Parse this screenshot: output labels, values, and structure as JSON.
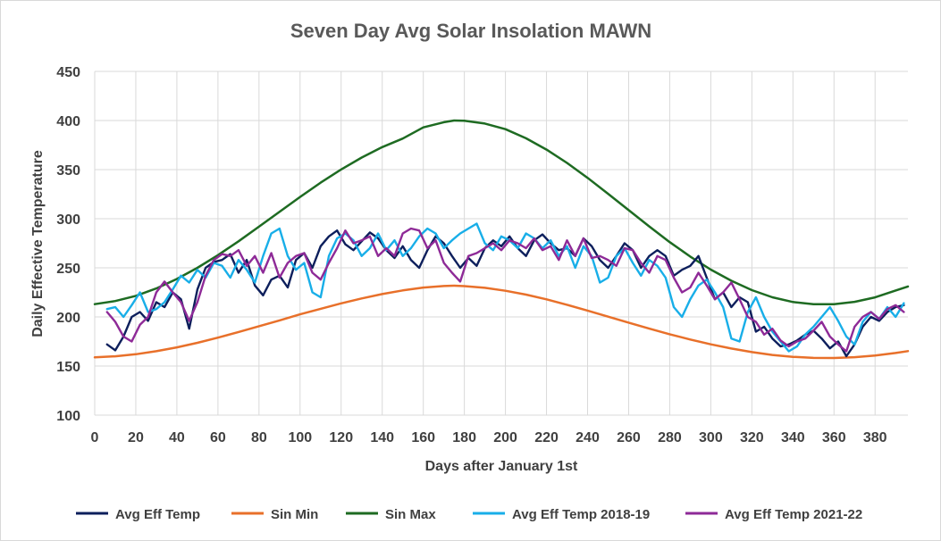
{
  "chart_data": {
    "type": "line",
    "title": "Seven Day Avg Solar Insolation MAWN",
    "xlabel": "Days after January 1st",
    "ylabel": "Daily Effective Temperature",
    "xlim": [
      0,
      396
    ],
    "ylim": [
      100,
      450
    ],
    "xticks": [
      0,
      20,
      40,
      60,
      80,
      100,
      120,
      140,
      160,
      180,
      200,
      220,
      240,
      260,
      280,
      300,
      320,
      340,
      360,
      380
    ],
    "yticks": [
      100,
      150,
      200,
      250,
      300,
      350,
      400,
      450
    ],
    "grid": true,
    "legend_position": "bottom",
    "series": [
      {
        "name": "Avg Eff Temp",
        "color": "#0d1f5c",
        "x": [
          6,
          10,
          14,
          18,
          22,
          26,
          30,
          34,
          38,
          42,
          46,
          50,
          54,
          58,
          62,
          66,
          70,
          74,
          78,
          82,
          86,
          90,
          94,
          98,
          102,
          106,
          110,
          114,
          118,
          122,
          126,
          130,
          134,
          138,
          142,
          146,
          150,
          154,
          158,
          162,
          166,
          170,
          174,
          178,
          182,
          186,
          190,
          194,
          198,
          202,
          206,
          210,
          214,
          218,
          222,
          226,
          230,
          234,
          238,
          242,
          246,
          250,
          254,
          258,
          262,
          266,
          270,
          274,
          278,
          282,
          286,
          290,
          294,
          298,
          302,
          306,
          310,
          314,
          318,
          322,
          326,
          330,
          334,
          338,
          342,
          346,
          350,
          354,
          358,
          362,
          366,
          370,
          374,
          378,
          382,
          386,
          390,
          394
        ],
        "values": [
          172,
          166,
          180,
          200,
          205,
          196,
          215,
          210,
          225,
          218,
          188,
          228,
          250,
          256,
          258,
          264,
          245,
          258,
          232,
          222,
          238,
          242,
          230,
          258,
          265,
          250,
          272,
          282,
          288,
          274,
          268,
          277,
          286,
          280,
          268,
          260,
          272,
          258,
          250,
          268,
          282,
          275,
          262,
          250,
          260,
          252,
          270,
          278,
          272,
          282,
          270,
          262,
          278,
          284,
          275,
          268,
          270,
          262,
          280,
          272,
          258,
          250,
          262,
          275,
          268,
          250,
          262,
          268,
          262,
          242,
          248,
          252,
          262,
          240,
          218,
          225,
          210,
          220,
          215,
          185,
          190,
          178,
          170,
          172,
          176,
          182,
          186,
          178,
          168,
          175,
          160,
          172,
          190,
          200,
          196,
          205,
          210,
          212
        ]
      },
      {
        "name": "Sin Min",
        "color": "#e8702a",
        "x": [
          0,
          10,
          20,
          30,
          40,
          50,
          60,
          70,
          80,
          90,
          100,
          110,
          120,
          130,
          140,
          150,
          160,
          170,
          175,
          180,
          190,
          200,
          210,
          220,
          230,
          240,
          250,
          260,
          270,
          280,
          290,
          300,
          310,
          320,
          330,
          340,
          350,
          360,
          370,
          380,
          390,
          396
        ],
        "values": [
          158.8,
          159.9,
          162.0,
          165.1,
          169.0,
          173.6,
          178.9,
          184.6,
          190.5,
          196.5,
          202.6,
          208.3,
          213.8,
          218.8,
          223.3,
          227.0,
          229.9,
          231.5,
          231.8,
          231.4,
          229.6,
          226.6,
          222.7,
          217.9,
          212.4,
          206.5,
          200.3,
          194.2,
          188.1,
          182.4,
          177.0,
          172.1,
          167.8,
          164.2,
          161.3,
          159.4,
          158.3,
          158.2,
          159.0,
          160.7,
          163.3,
          165.2
        ]
      },
      {
        "name": "Sin Max",
        "color": "#1e6b22",
        "x": [
          0,
          10,
          20,
          30,
          40,
          50,
          60,
          70,
          80,
          90,
          100,
          110,
          120,
          130,
          140,
          150,
          160,
          170,
          175,
          180,
          190,
          200,
          210,
          220,
          230,
          240,
          250,
          260,
          270,
          280,
          290,
          300,
          310,
          320,
          330,
          340,
          350,
          360,
          370,
          380,
          390,
          396
        ],
        "values": [
          213.0,
          216.2,
          221.5,
          229.0,
          238.6,
          250.0,
          262.9,
          277.0,
          291.9,
          307.1,
          322.2,
          336.7,
          350.2,
          362.3,
          372.9,
          381.6,
          393.0,
          398.3,
          400.0,
          399.7,
          396.9,
          391.2,
          381.9,
          370.4,
          356.8,
          341.6,
          325.4,
          308.7,
          292.2,
          276.2,
          261.5,
          248.2,
          236.8,
          227.3,
          220.0,
          215.2,
          213.0,
          213.0,
          215.4,
          219.9,
          226.9,
          231.0
        ]
      },
      {
        "name": "Avg Eff Temp 2018-19",
        "color": "#18aee8",
        "x": [
          6,
          10,
          14,
          18,
          22,
          26,
          30,
          34,
          38,
          42,
          46,
          50,
          54,
          58,
          62,
          66,
          70,
          74,
          78,
          82,
          86,
          90,
          94,
          98,
          102,
          106,
          110,
          114,
          118,
          122,
          126,
          130,
          134,
          138,
          142,
          146,
          150,
          154,
          158,
          162,
          166,
          170,
          174,
          178,
          182,
          186,
          190,
          194,
          198,
          202,
          206,
          210,
          214,
          218,
          222,
          226,
          230,
          234,
          238,
          242,
          246,
          250,
          254,
          258,
          262,
          266,
          270,
          274,
          278,
          282,
          286,
          290,
          294,
          298,
          302,
          306,
          310,
          314,
          318,
          322,
          326,
          330,
          334,
          338,
          342,
          346,
          350,
          354,
          358,
          362,
          366,
          370,
          374,
          378,
          382,
          386,
          390,
          394
        ],
        "values": [
          208,
          210,
          200,
          212,
          225,
          205,
          208,
          215,
          228,
          242,
          235,
          248,
          240,
          255,
          252,
          240,
          258,
          248,
          235,
          262,
          285,
          290,
          262,
          248,
          255,
          225,
          220,
          262,
          280,
          285,
          278,
          262,
          270,
          285,
          268,
          278,
          262,
          270,
          282,
          290,
          285,
          270,
          278,
          285,
          290,
          295,
          275,
          268,
          282,
          278,
          270,
          285,
          280,
          270,
          278,
          262,
          272,
          250,
          272,
          262,
          235,
          240,
          262,
          270,
          255,
          242,
          258,
          252,
          240,
          210,
          200,
          218,
          232,
          238,
          225,
          210,
          178,
          175,
          205,
          220,
          200,
          185,
          175,
          165,
          170,
          182,
          190,
          200,
          210,
          196,
          180,
          172,
          195,
          205,
          198,
          210,
          200,
          214
        ]
      },
      {
        "name": "Avg Eff Temp 2021-22",
        "color": "#8e2a97",
        "x": [
          6,
          10,
          14,
          18,
          22,
          26,
          30,
          34,
          38,
          42,
          46,
          50,
          54,
          58,
          62,
          66,
          70,
          74,
          78,
          82,
          86,
          90,
          94,
          98,
          102,
          106,
          110,
          114,
          118,
          122,
          126,
          130,
          134,
          138,
          142,
          146,
          150,
          154,
          158,
          162,
          166,
          170,
          174,
          178,
          182,
          186,
          190,
          194,
          198,
          202,
          206,
          210,
          214,
          218,
          222,
          226,
          230,
          234,
          238,
          242,
          246,
          250,
          254,
          258,
          262,
          266,
          270,
          274,
          278,
          282,
          286,
          290,
          294,
          298,
          302,
          306,
          310,
          314,
          318,
          322,
          326,
          330,
          334,
          338,
          342,
          346,
          350,
          354,
          358,
          362,
          366,
          370,
          374,
          378,
          382,
          386,
          390,
          394
        ],
        "values": [
          205,
          195,
          180,
          175,
          192,
          200,
          225,
          236,
          225,
          215,
          196,
          215,
          242,
          258,
          264,
          262,
          268,
          252,
          262,
          245,
          265,
          240,
          255,
          262,
          265,
          245,
          238,
          255,
          270,
          288,
          275,
          278,
          282,
          262,
          270,
          262,
          285,
          290,
          288,
          270,
          278,
          255,
          245,
          236,
          262,
          265,
          270,
          275,
          268,
          278,
          275,
          270,
          280,
          268,
          272,
          258,
          278,
          262,
          280,
          260,
          262,
          258,
          252,
          270,
          268,
          255,
          245,
          262,
          258,
          240,
          225,
          230,
          245,
          232,
          218,
          225,
          235,
          218,
          200,
          195,
          182,
          188,
          176,
          170,
          175,
          178,
          186,
          195,
          180,
          172,
          165,
          190,
          200,
          205,
          198,
          208,
          212,
          205
        ]
      }
    ]
  }
}
